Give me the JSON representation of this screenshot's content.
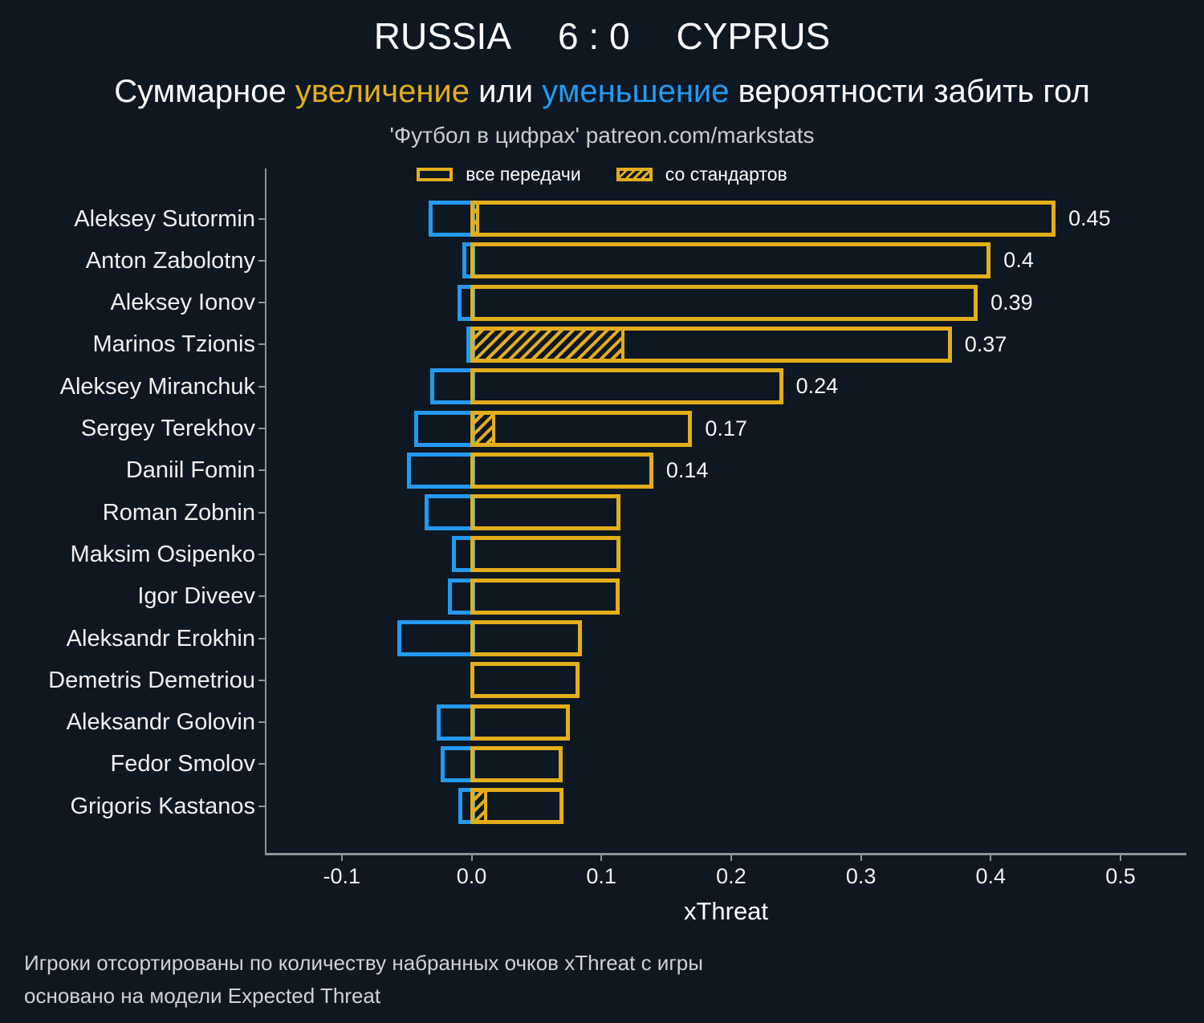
{
  "header": {
    "title_home": "RUSSIA",
    "title_score": "6 : 0",
    "title_away": "CYPRUS",
    "subtitle_parts": [
      {
        "text": "Суммарное ",
        "color": "white"
      },
      {
        "text": "увеличение",
        "color": "gold"
      },
      {
        "text": " или ",
        "color": "white"
      },
      {
        "text": "уменьшение",
        "color": "blue"
      },
      {
        "text": " вероятности забить гол",
        "color": "white"
      }
    ],
    "attribution": "'Футбол в цифрах' patreon.com/markstats"
  },
  "legend": {
    "all_passes": "все передачи",
    "set_pieces": "со стандартов"
  },
  "footer": {
    "line1": "Игроки отсортированы по количеству набранных очков xThreat с игры",
    "line2": "основано на модели Expected Threat"
  },
  "colors": {
    "background": "#0e1822",
    "positive_gold": "#e3ae1b",
    "negative_blue": "#2499f2",
    "axis_gray": "#8b9598",
    "text_white": "#ffffff",
    "muted_gray": "#c9cdce"
  },
  "chart_data": {
    "type": "bar",
    "orientation": "horizontal",
    "xlabel": "xThreat",
    "xlim": [
      -0.159,
      0.551
    ],
    "xticks": [
      -0.1,
      0.0,
      0.1,
      0.2,
      0.3,
      0.4,
      0.5
    ],
    "xtick_labels": [
      "-0.1",
      "0.0",
      "0.1",
      "0.2",
      "0.3",
      "0.4",
      "0.5"
    ],
    "grid": false,
    "legend_position": "top-center",
    "series_note": "positive = увеличение (gold outline), negative = уменьшение (blue outline), hatched = со стандартов",
    "players": [
      {
        "name": "Aleksey Sutormin",
        "positive": 0.45,
        "negative": -0.033,
        "set_pieces": 0.006,
        "label": "0.45"
      },
      {
        "name": "Anton Zabolotny",
        "positive": 0.4,
        "negative": -0.007,
        "set_pieces": 0,
        "label": "0.4"
      },
      {
        "name": "Aleksey Ionov",
        "positive": 0.39,
        "negative": -0.011,
        "set_pieces": 0,
        "label": "0.39"
      },
      {
        "name": "Marinos Tzionis",
        "positive": 0.37,
        "negative": -0.004,
        "set_pieces": 0.118,
        "label": "0.37"
      },
      {
        "name": "Aleksey Miranchuk",
        "positive": 0.24,
        "negative": -0.032,
        "set_pieces": 0,
        "label": "0.24"
      },
      {
        "name": "Sergey Terekhov",
        "positive": 0.17,
        "negative": -0.044,
        "set_pieces": 0.018,
        "label": "0.17"
      },
      {
        "name": "Daniil Fomin",
        "positive": 0.14,
        "negative": -0.05,
        "set_pieces": 0,
        "label": "0.14"
      },
      {
        "name": "Roman Zobnin",
        "positive": 0.115,
        "negative": -0.036,
        "set_pieces": 0,
        "label": ""
      },
      {
        "name": "Maksim Osipenko",
        "positive": 0.115,
        "negative": -0.015,
        "set_pieces": 0,
        "label": ""
      },
      {
        "name": "Igor Diveev",
        "positive": 0.114,
        "negative": -0.018,
        "set_pieces": 0,
        "label": ""
      },
      {
        "name": "Aleksandr Erokhin",
        "positive": 0.085,
        "negative": -0.057,
        "set_pieces": 0,
        "label": ""
      },
      {
        "name": "Demetris Demetriou",
        "positive": 0.083,
        "negative": 0,
        "set_pieces": 0,
        "label": ""
      },
      {
        "name": "Aleksandr Golovin",
        "positive": 0.076,
        "negative": -0.027,
        "set_pieces": 0,
        "label": ""
      },
      {
        "name": "Fedor Smolov",
        "positive": 0.07,
        "negative": -0.024,
        "set_pieces": 0,
        "label": ""
      },
      {
        "name": "Grigoris Kastanos",
        "positive": 0.071,
        "negative": -0.01,
        "set_pieces": 0.012,
        "label": ""
      }
    ]
  }
}
